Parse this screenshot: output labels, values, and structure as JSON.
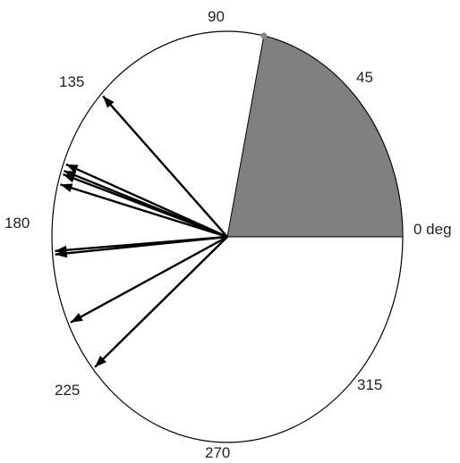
{
  "angle_labels": {
    "deg0": "0 deg",
    "deg45": "45",
    "deg90": "90",
    "deg135": "135",
    "deg180": "180",
    "deg225": "225",
    "deg270": "270",
    "deg315": "315"
  },
  "sector": {
    "from_deg": 0,
    "to_deg": 78,
    "color": "#808080"
  },
  "arrow_angles_deg": [
    136,
    159,
    161,
    162,
    165,
    184,
    185,
    205,
    220
  ],
  "colors": {
    "stroke": "#000000",
    "marker": "#888888",
    "background": "#ffffff"
  }
}
